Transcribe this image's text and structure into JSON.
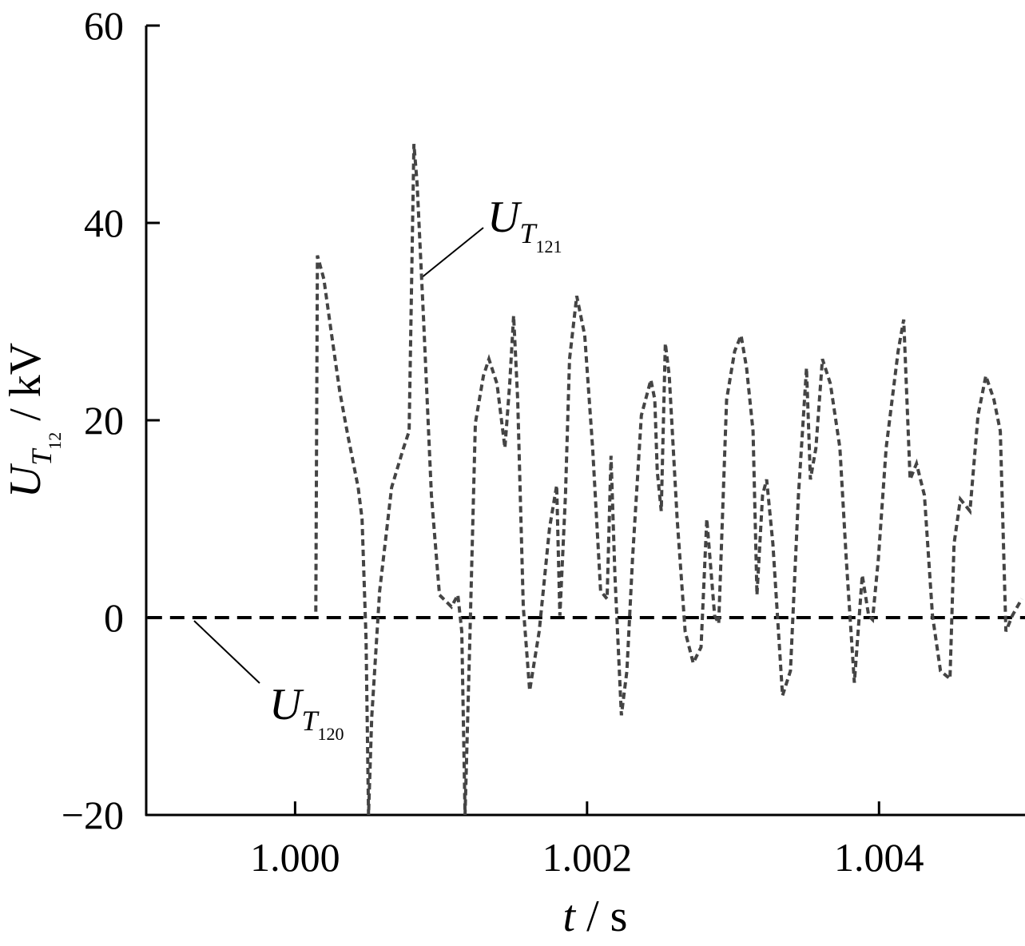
{
  "chart_data": {
    "type": "line",
    "x_label": [
      {
        "text": "t",
        "italic": true
      },
      {
        "text": " / s"
      }
    ],
    "y_label": [
      {
        "text": "U",
        "italic": true
      },
      {
        "text": "T",
        "italic": true,
        "level": 1
      },
      {
        "text": "12",
        "level": 2
      },
      {
        "text": " / kV"
      }
    ],
    "xlim": [
      0.99898,
      1.005
    ],
    "xticks": [
      {
        "value": 1,
        "label": "1.000"
      },
      {
        "value": 1.002,
        "label": "1.002"
      },
      {
        "value": 1.004,
        "label": "1.004"
      }
    ],
    "ylim": [
      -20,
      60
    ],
    "yticks": [
      {
        "value": -20,
        "label": "−20"
      },
      0,
      20,
      40,
      60
    ],
    "grid": false,
    "series": [
      {
        "color": "#000000",
        "dash": "18 10",
        "x": [
          0.99899,
          1.005
        ],
        "values": [
          0,
          0
        ]
      },
      {
        "color": "#444444",
        "dash": "8 5",
        "x": [
          1.000142,
          1.000153,
          1.000197,
          1.000251,
          1.000306,
          1.000361,
          1.000432,
          1.000459,
          1.000486,
          1.000503,
          1.000525,
          1.000579,
          1.000661,
          1.000743,
          1.000781,
          1.000814,
          1.000836,
          1.00088,
          1.000934,
          1.000989,
          1.001071,
          1.001115,
          1.001142,
          1.001164,
          1.001197,
          1.001235,
          1.00129,
          1.001328,
          1.001383,
          1.001437,
          1.00147,
          1.001497,
          1.001525,
          1.001563,
          1.001607,
          1.001672,
          1.001743,
          1.001792,
          1.001814,
          1.001852,
          1.00188,
          1.001929,
          1.001984,
          1.002038,
          1.002093,
          1.002137,
          1.002164,
          1.002191,
          1.002235,
          1.002273,
          1.002311,
          1.002372,
          1.002437,
          1.002464,
          1.002481,
          1.002508,
          1.002536,
          1.002563,
          1.002617,
          1.002672,
          1.002727,
          1.002781,
          1.00282,
          1.002847,
          1.002874,
          1.002902,
          1.002956,
          1.003011,
          1.003055,
          1.003093,
          1.003137,
          1.003164,
          1.003202,
          1.00323,
          1.003273,
          1.003339,
          1.003393,
          1.003448,
          1.003503,
          1.00353,
          1.003568,
          1.003612,
          1.003667,
          1.003732,
          1.003776,
          1.003831,
          1.003885,
          1.003929,
          1.003956,
          1.003995,
          1.004049,
          1.004131,
          1.004169,
          1.004213,
          1.004257,
          1.004311,
          1.004366,
          1.004421,
          1.004486,
          1.004514,
          1.004557,
          1.004623,
          1.004678,
          1.004732,
          1.004787,
          1.004831,
          1.004869,
          1.004913,
          1.004978
        ],
        "values": [
          0.6,
          36.7,
          34.3,
          28.6,
          22.9,
          18.5,
          13.2,
          10,
          -2.2,
          -20,
          -10.1,
          2.7,
          13.2,
          17.2,
          18.9,
          48,
          44,
          30.2,
          12.4,
          2.3,
          1.1,
          2.3,
          -1.4,
          -20,
          -2.2,
          19.7,
          24.5,
          26.2,
          23.7,
          17.2,
          23.7,
          30.6,
          22.1,
          1.1,
          -7.4,
          -1.4,
          9.1,
          13.4,
          0.2,
          12.4,
          26.2,
          32.6,
          28.6,
          17.2,
          2.7,
          1.9,
          16.4,
          4.3,
          -9.9,
          -5.4,
          5.9,
          20.5,
          24.1,
          22.1,
          14.8,
          10.8,
          27.8,
          24.5,
          10,
          -1.4,
          -4.6,
          -3,
          10,
          5.1,
          0.2,
          -0.6,
          22.1,
          27,
          28.6,
          25.3,
          18.9,
          2.3,
          12.4,
          14,
          7.5,
          -7.9,
          -5.4,
          12.4,
          25.3,
          14,
          17.2,
          26.2,
          23.7,
          17.2,
          5.9,
          -6.6,
          4.3,
          0.2,
          -0.2,
          5.9,
          17.2,
          27,
          30.2,
          14,
          15.6,
          12.4,
          0.2,
          -5.4,
          -6.2,
          7.5,
          12,
          10.8,
          20.5,
          24.5,
          22.1,
          18.9,
          -1.4,
          0.2,
          1.9
        ]
      }
    ],
    "annotations": [
      {
        "parts": [
          {
            "text": "U",
            "italic": true
          },
          {
            "text": "T",
            "italic": true,
            "level": 1
          },
          {
            "text": "121",
            "level": 2
          }
        ]
      },
      {
        "parts": [
          {
            "text": "U",
            "italic": true
          },
          {
            "text": "T",
            "italic": true,
            "level": 1
          },
          {
            "text": "120",
            "level": 2
          }
        ]
      }
    ]
  }
}
